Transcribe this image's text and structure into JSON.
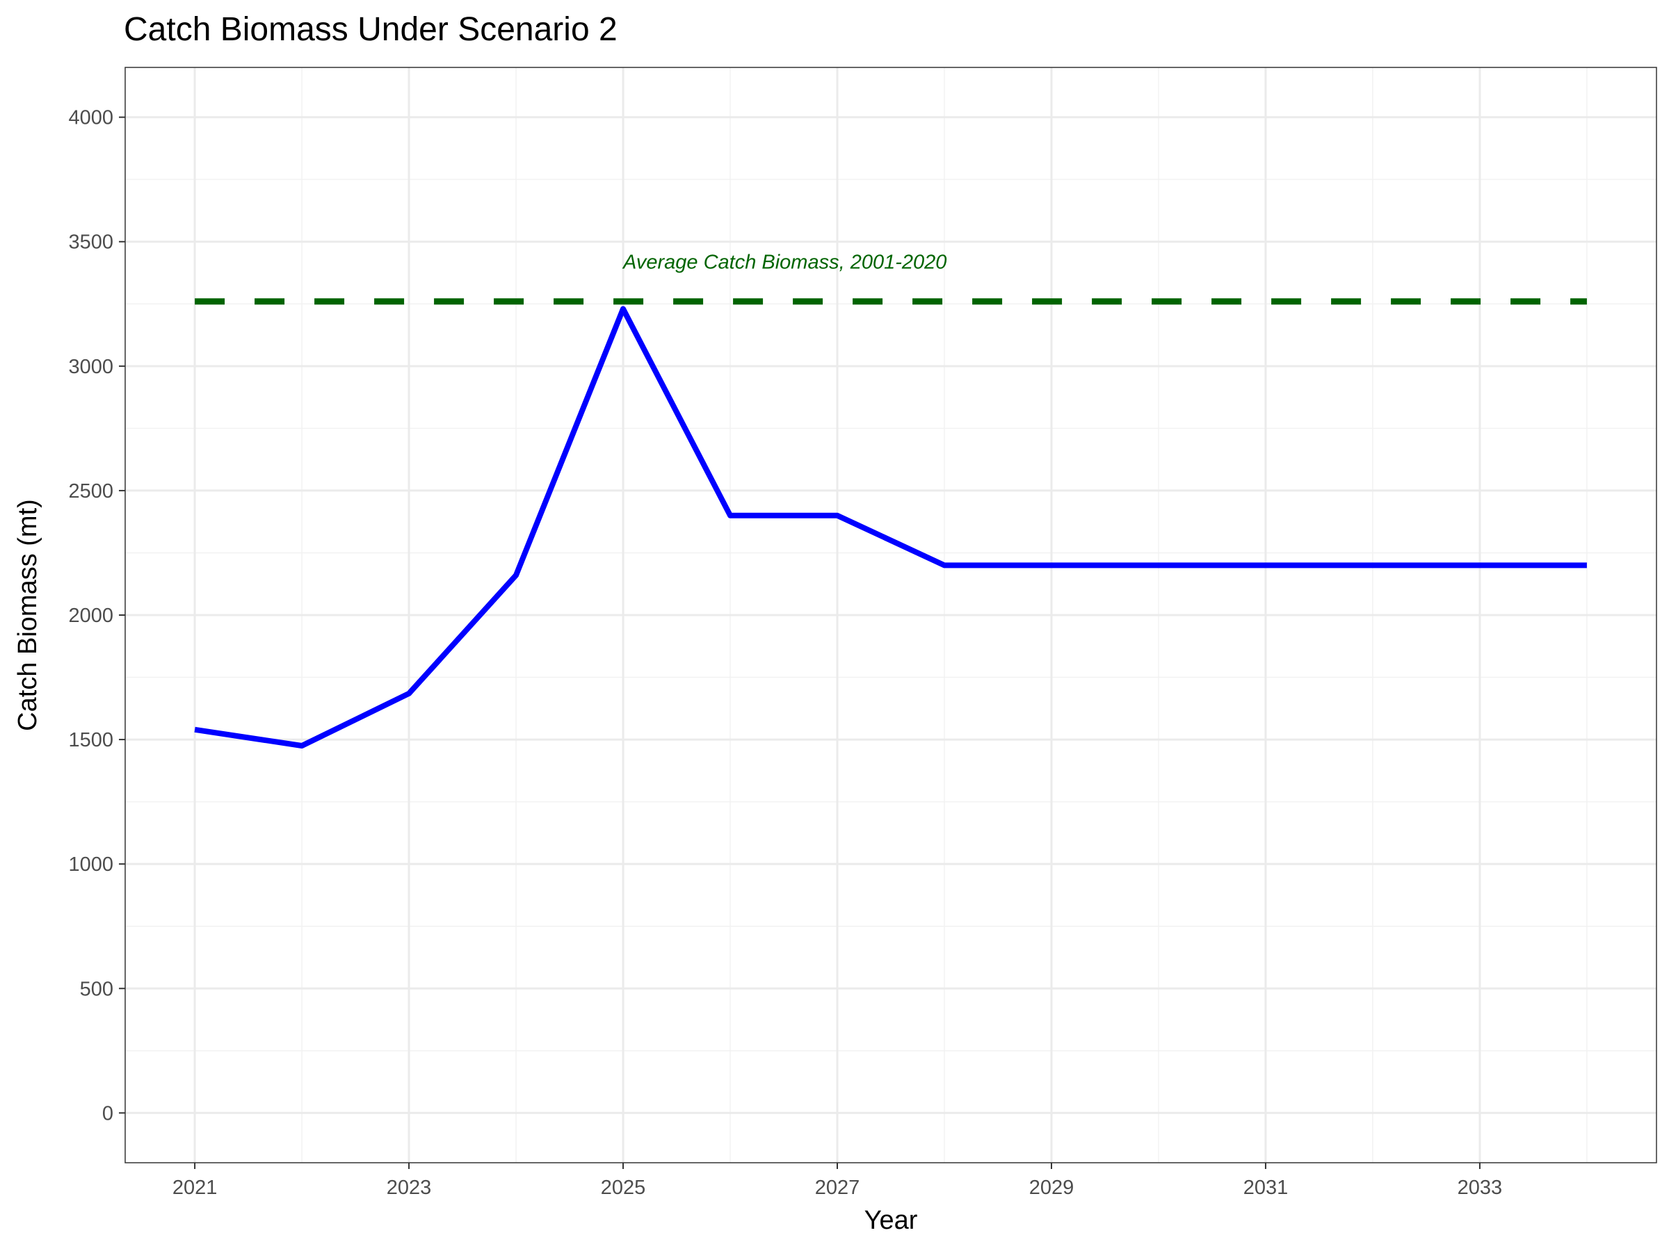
{
  "chart_data": {
    "type": "line",
    "title": "Catch Biomass Under Scenario 2",
    "xlabel": "Year",
    "ylabel": "Catch Biomass (mt)",
    "xlim": [
      2020.35,
      2034.65
    ],
    "ylim": [
      -200,
      4200
    ],
    "x_ticks": [
      2021,
      2023,
      2025,
      2027,
      2029,
      2031,
      2033
    ],
    "y_ticks": [
      0,
      500,
      1000,
      1500,
      2000,
      2500,
      3000,
      3500,
      4000
    ],
    "grid": true,
    "series": [
      {
        "color": "#0000ff",
        "style": "solid",
        "x": [
          2021,
          2022,
          2023,
          2024,
          2025,
          2026,
          2027,
          2028,
          2029,
          2030,
          2031,
          2032,
          2033,
          2034
        ],
        "y": [
          1540,
          1475,
          1685,
          2160,
          3230,
          2400,
          2400,
          2200,
          2200,
          2200,
          2200,
          2200,
          2200,
          2200
        ]
      }
    ],
    "reference_line": {
      "label": "Average Catch Biomass, 2001-2020",
      "y": 3260,
      "x": [
        2021,
        2034
      ],
      "color": "#006400",
      "style": "dashed"
    }
  }
}
